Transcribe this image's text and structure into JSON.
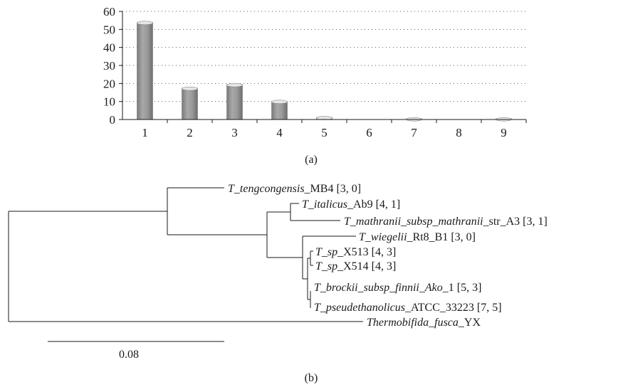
{
  "chart_data": [
    {
      "type": "bar",
      "panel_label": "(a)",
      "categories": [
        "1",
        "2",
        "3",
        "4",
        "5",
        "6",
        "7",
        "8",
        "9"
      ],
      "values": [
        54,
        17.5,
        19.5,
        10.2,
        1.2,
        0,
        0.5,
        0,
        0.5
      ],
      "ylim": [
        0,
        60
      ],
      "yticks": [
        "0",
        "10",
        "20",
        "30",
        "40",
        "50",
        "60"
      ],
      "grid": "dotted horizontal",
      "bar_color": "#8f8f8f",
      "title": "",
      "xlabel": "",
      "ylabel": ""
    },
    {
      "type": "tree",
      "panel_label": "(b)",
      "scale_bar_label": "0.08",
      "leaves": [
        {
          "id": "teng",
          "parts": [
            {
              "t": "T_tengcongensis",
              "i": true
            },
            {
              "t": "_MB4 [3, 0]",
              "i": false
            }
          ]
        },
        {
          "id": "ital",
          "parts": [
            {
              "t": "T_italicus",
              "i": true
            },
            {
              "t": "_Ab9 [4, 1]",
              "i": false
            }
          ]
        },
        {
          "id": "math",
          "parts": [
            {
              "t": "T_mathranii_subsp_mathranii",
              "i": true
            },
            {
              "t": "_str_A3 [3, 1]",
              "i": false
            }
          ]
        },
        {
          "id": "wieg",
          "parts": [
            {
              "t": "T_wiegelii",
              "i": true
            },
            {
              "t": "_Rt8_B1 [3, 0]",
              "i": false
            }
          ]
        },
        {
          "id": "x513",
          "parts": [
            {
              "t": "T_sp",
              "i": true
            },
            {
              "t": "_X513 [4, 3]",
              "i": false
            }
          ]
        },
        {
          "id": "x514",
          "parts": [
            {
              "t": "T_sp",
              "i": true
            },
            {
              "t": "_X514 [4, 3]",
              "i": false
            }
          ]
        },
        {
          "id": "brock",
          "parts": [
            {
              "t": "T_brockii_subsp_finnii_Ako",
              "i": true
            },
            {
              "t": "_1 [5, 3]",
              "i": false
            }
          ]
        },
        {
          "id": "pseu",
          "parts": [
            {
              "t": "T_pseudethanolicus",
              "i": true
            },
            {
              "t": "_ATCC_33223 [7, 5]",
              "i": false
            }
          ]
        },
        {
          "id": "thermo",
          "parts": [
            {
              "t": "Thermobifida_fusca",
              "i": true
            },
            {
              "t": "_YX",
              "i": false
            }
          ]
        }
      ]
    }
  ]
}
